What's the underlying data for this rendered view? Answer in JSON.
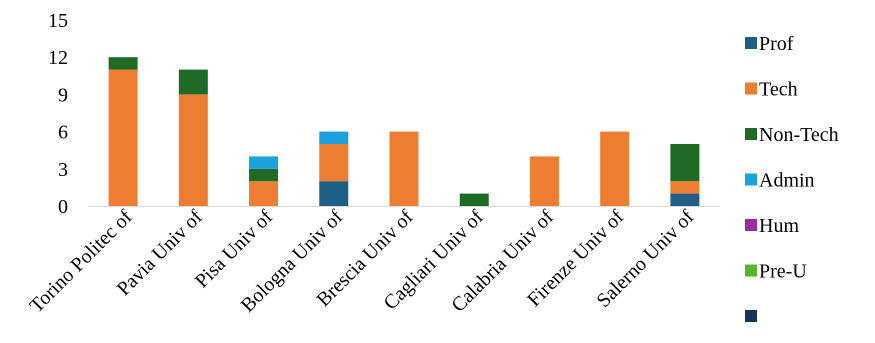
{
  "chart_data": {
    "type": "bar",
    "stacked": true,
    "categories": [
      "Torino Politec of",
      "Pavia Univ of",
      "Pisa Univ of",
      "Bologna Univ of",
      "Brescia Univ of",
      "Cagliari Univ of",
      "Calabria Univ of",
      "Firenze Univ of",
      "Salerno Univ of"
    ],
    "series": [
      {
        "name": "Prof",
        "color": "#1f5f86",
        "values": [
          0,
          0,
          0,
          2,
          0,
          0,
          0,
          0,
          1
        ]
      },
      {
        "name": "Tech",
        "color": "#ed7d31",
        "values": [
          11,
          9,
          2,
          3,
          6,
          0,
          4,
          6,
          1
        ]
      },
      {
        "name": "Non-Tech",
        "color": "#1e6b26",
        "values": [
          1,
          2,
          1,
          0,
          0,
          1,
          0,
          0,
          3
        ]
      },
      {
        "name": "Admin",
        "color": "#1ba1db",
        "values": [
          0,
          0,
          1,
          1,
          0,
          0,
          0,
          0,
          0
        ]
      },
      {
        "name": "Hum",
        "color": "#9a2ba0",
        "values": [
          0,
          0,
          0,
          0,
          0,
          0,
          0,
          0,
          0
        ]
      },
      {
        "name": "Pre-U",
        "color": "#5ab52e",
        "values": [
          0,
          0,
          0,
          0,
          0,
          0,
          0,
          0,
          0
        ]
      },
      {
        "name": "",
        "color": "#12365a",
        "values": [
          0,
          0,
          0,
          0,
          0,
          0,
          0,
          0,
          0
        ]
      }
    ],
    "y_ticks": [
      0,
      3,
      6,
      9,
      12,
      15
    ],
    "ylim": [
      0,
      15
    ],
    "title": "",
    "xlabel": "",
    "ylabel": "",
    "grid": false,
    "legend_position": "right"
  }
}
